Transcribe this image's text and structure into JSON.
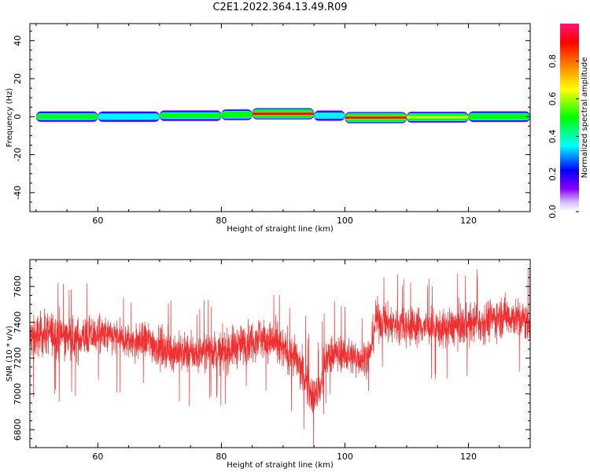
{
  "title": "C2E1.2022.364.13.49.R09",
  "chart_data": [
    {
      "type": "heatmap",
      "xlabel": "Height of straight line (km)",
      "ylabel": "Frequency (Hz)",
      "xlim": [
        49,
        130
      ],
      "ylim": [
        -50,
        49
      ],
      "xticks": [
        60,
        80,
        100,
        120
      ],
      "yticks": [
        40,
        20,
        0,
        -20,
        -40
      ],
      "colorbar": {
        "label": "Normalized spectral amplitude",
        "range": [
          0,
          1
        ],
        "ticks": [
          "0.0",
          "0.2",
          "0.4",
          "0.6",
          "0.8"
        ],
        "colormap": "hsv-rainbow",
        "colors": [
          "#ffffff",
          "#c9a8ff",
          "#8a00ff",
          "#0000ff",
          "#00ffff",
          "#00ff00",
          "#ffff00",
          "#ff7f00",
          "#ff0000",
          "#ff1a75"
        ]
      },
      "segments": [
        {
          "x_start": 50,
          "x_end": 60,
          "center_hz": 0.0,
          "amplitude": 0.45
        },
        {
          "x_start": 60,
          "x_end": 70,
          "center_hz": 0.0,
          "amplitude": 0.42
        },
        {
          "x_start": 70,
          "x_end": 80,
          "center_hz": 0.5,
          "amplitude": 0.46
        },
        {
          "x_start": 80,
          "x_end": 85,
          "center_hz": 1.0,
          "amplitude": 0.55
        },
        {
          "x_start": 85,
          "x_end": 95,
          "center_hz": 1.5,
          "amplitude": 0.9
        },
        {
          "x_start": 95,
          "x_end": 100,
          "center_hz": 0.5,
          "amplitude": 0.4
        },
        {
          "x_start": 100,
          "x_end": 110,
          "center_hz": -0.5,
          "amplitude": 0.85
        },
        {
          "x_start": 110,
          "x_end": 120,
          "center_hz": -0.3,
          "amplitude": 0.6
        },
        {
          "x_start": 120,
          "x_end": 130,
          "center_hz": 0.0,
          "amplitude": 0.5
        }
      ]
    },
    {
      "type": "line",
      "xlabel": "Height of straight line (km)",
      "ylabel": "SNR (10 * v/v)",
      "xlim": [
        49,
        130
      ],
      "ylim": [
        6700,
        7750
      ],
      "xticks": [
        60,
        80,
        100,
        120
      ],
      "yticks": [
        7600,
        7400,
        7200,
        7000,
        6800
      ],
      "color": "#f03030",
      "series": [
        {
          "x": [
            50,
            52,
            54,
            56,
            58,
            60,
            62,
            64,
            66,
            68,
            70,
            72,
            74,
            76,
            78,
            80,
            82,
            84,
            86,
            88,
            90,
            92,
            93,
            94,
            95,
            96,
            97,
            98,
            100,
            102,
            104,
            105,
            106,
            108,
            110,
            112,
            114,
            116,
            118,
            120,
            122,
            124,
            126,
            128,
            130
          ],
          "mean": [
            7320,
            7340,
            7330,
            7300,
            7320,
            7330,
            7320,
            7300,
            7280,
            7300,
            7260,
            7240,
            7230,
            7220,
            7250,
            7230,
            7260,
            7280,
            7320,
            7290,
            7250,
            7200,
            7120,
            7050,
            6980,
            7020,
            7200,
            7230,
            7220,
            7200,
            7210,
            7420,
            7400,
            7390,
            7380,
            7380,
            7370,
            7360,
            7380,
            7390,
            7400,
            7420,
            7440,
            7420,
            7400
          ],
          "range_min": [
            7000,
            7000,
            6950,
            7000,
            7000,
            7050,
            7050,
            7000,
            7000,
            7000,
            6980,
            6950,
            6950,
            6950,
            7000,
            6950,
            6950,
            7000,
            7000,
            7000,
            6950,
            6900,
            6850,
            6780,
            6720,
            6800,
            6950,
            6980,
            6980,
            6950,
            7000,
            7150,
            7120,
            7100,
            7100,
            7100,
            7100,
            7100,
            7100,
            7100,
            7100,
            7150,
            7150,
            7150,
            7100
          ],
          "range_max": [
            7620,
            7600,
            7600,
            7580,
            7600,
            7580,
            7560,
            7520,
            7520,
            7560,
            7540,
            7500,
            7500,
            7480,
            7520,
            7520,
            7540,
            7560,
            7600,
            7560,
            7520,
            7500,
            7450,
            7400,
            7300,
            7350,
            7480,
            7500,
            7480,
            7460,
            7480,
            7720,
            7680,
            7650,
            7640,
            7640,
            7620,
            7620,
            7650,
            7660,
            7680,
            7720,
            7730,
            7700,
            7680
          ]
        }
      ]
    }
  ]
}
